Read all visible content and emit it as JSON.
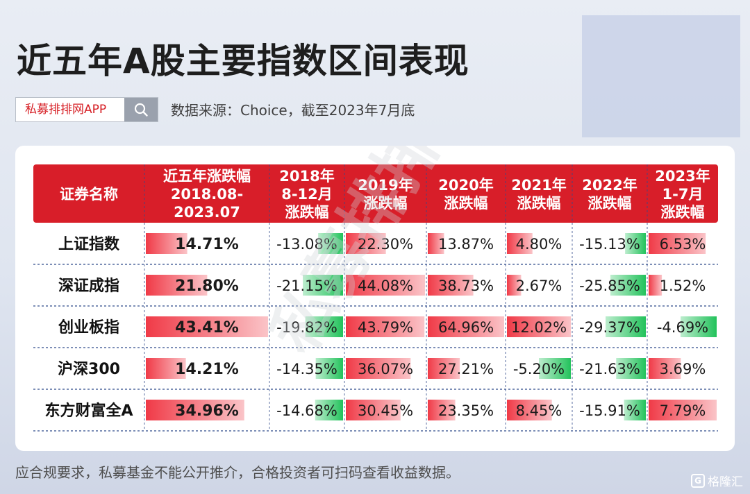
{
  "title": "近五年A股主要指数区间表现",
  "search": {
    "text": "私募排排网APP",
    "icon": "search-icon"
  },
  "source": "数据来源：Choice，截至2023年7月底",
  "footer": "应合规要求，私募基金不能公开推介，合格投资者可扫码查看收益数据。",
  "logo": {
    "text": "格隆汇",
    "mark": "G"
  },
  "watermark": "私募排排网",
  "colors": {
    "header_bg": "#d81e29",
    "positive_bar": "#f03a47",
    "negative_bar": "#22c25b",
    "row_divider": "#2f4a8a"
  },
  "chart_data": {
    "type": "table",
    "columns": [
      [
        "证券名称"
      ],
      [
        "近五年涨跌幅",
        "2018.08-",
        "2023.07"
      ],
      [
        "2018年",
        "8-12月",
        "涨跌幅"
      ],
      [
        "2019年",
        "涨跌幅"
      ],
      [
        "2020年",
        "涨跌幅"
      ],
      [
        "2021年",
        "涨跌幅"
      ],
      [
        "2022年",
        "涨跌幅"
      ],
      [
        "2023年",
        "1-7月",
        "涨跌幅"
      ]
    ],
    "rows": [
      {
        "name": "上证指数",
        "labels": [
          "14.71%",
          "-13.08%",
          "22.30%",
          "13.87%",
          "4.80%",
          "-15.13%",
          "6.53%"
        ],
        "values": [
          14.71,
          -13.08,
          22.3,
          13.87,
          4.8,
          -15.13,
          6.53
        ]
      },
      {
        "name": "深证成指",
        "labels": [
          "21.80%",
          "-21.15%",
          "44.08%",
          "38.73%",
          "2.67%",
          "-25.85%",
          "1.52%"
        ],
        "values": [
          21.8,
          -21.15,
          44.08,
          38.73,
          2.67,
          -25.85,
          1.52
        ]
      },
      {
        "name": "创业板指",
        "labels": [
          "43.41%",
          "-19.82%",
          "43.79%",
          "64.96%",
          "12.02%",
          "-29.37%",
          "-4.69%"
        ],
        "values": [
          43.41,
          -19.82,
          43.79,
          64.96,
          12.02,
          -29.37,
          -4.69
        ]
      },
      {
        "name": "沪深300",
        "labels": [
          "14.21%",
          "-14.35%",
          "36.07%",
          "27.21%",
          "-5.20%",
          "-21.63%",
          "3.69%"
        ],
        "values": [
          14.21,
          -14.35,
          36.07,
          27.21,
          -5.2,
          -21.63,
          3.69
        ]
      },
      {
        "name": "东方财富全A",
        "labels": [
          "34.96%",
          "-14.68%",
          "30.45%",
          "23.35%",
          "8.45%",
          "-15.91%",
          "7.79%"
        ],
        "values": [
          34.96,
          -14.68,
          30.45,
          23.35,
          8.45,
          -15.91,
          7.79
        ]
      }
    ]
  }
}
